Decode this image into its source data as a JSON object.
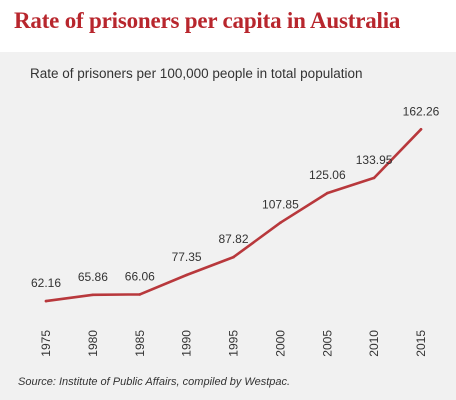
{
  "title": "Rate of prisoners per capita in Australia",
  "subtitle": "Rate of prisoners per 100,000 people in total population",
  "source": "Source: Institute of Public Affairs, compiled by Westpac.",
  "colors": {
    "title": "#b8262d",
    "line": "#b8383c",
    "panel": "#f1f1f1"
  },
  "chart_data": {
    "type": "line",
    "title": "Rate of prisoners per capita in Australia",
    "subtitle": "Rate of prisoners per 100,000 people in total population",
    "x": [
      "1975",
      "1980",
      "1985",
      "1990",
      "1995",
      "2000",
      "2005",
      "2010",
      "2015"
    ],
    "series": [
      {
        "values": [
          62.16,
          65.86,
          66.06,
          77.35,
          87.82,
          107.85,
          125.06,
          133.95,
          162.26
        ]
      }
    ],
    "ylim": [
      50,
      170
    ],
    "grid": false,
    "legend": "none",
    "data_labels": true
  }
}
